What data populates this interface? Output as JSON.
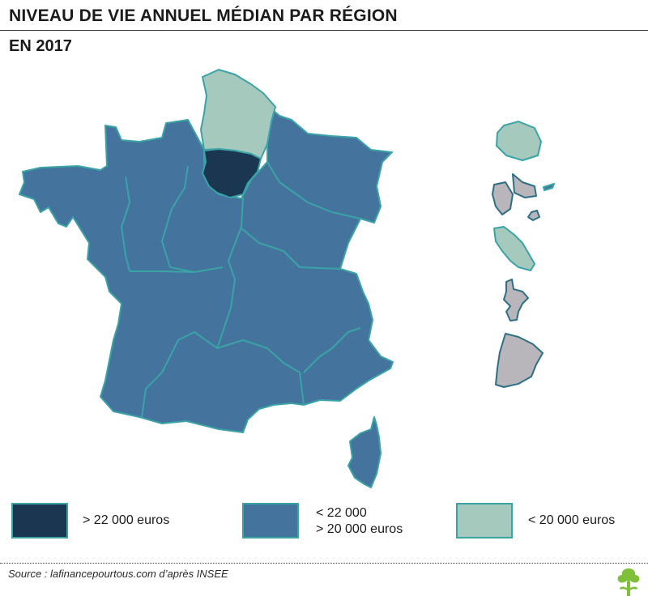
{
  "title": "NIVEAU DE VIE ANNUEL MÉDIAN PAR RÉGION",
  "subtitle": "EN 2017",
  "colors": {
    "dark": "#1b3650",
    "mid": "#44749d",
    "light": "#a5c9bd",
    "overseas_grey": "#b8b6bb",
    "border": "#3aa3a6"
  },
  "legend": [
    {
      "class": "dark",
      "line1": "> 22 000 euros",
      "line2": ""
    },
    {
      "class": "mid",
      "line1": "< 22 000",
      "line2": "> 20 000 euros"
    },
    {
      "class": "light",
      "line1": "< 20 000 euros",
      "line2": ""
    }
  ],
  "source": "Source : lafinancepourtous.com d’après INSEE",
  "logo_icon": "tree-icon"
}
